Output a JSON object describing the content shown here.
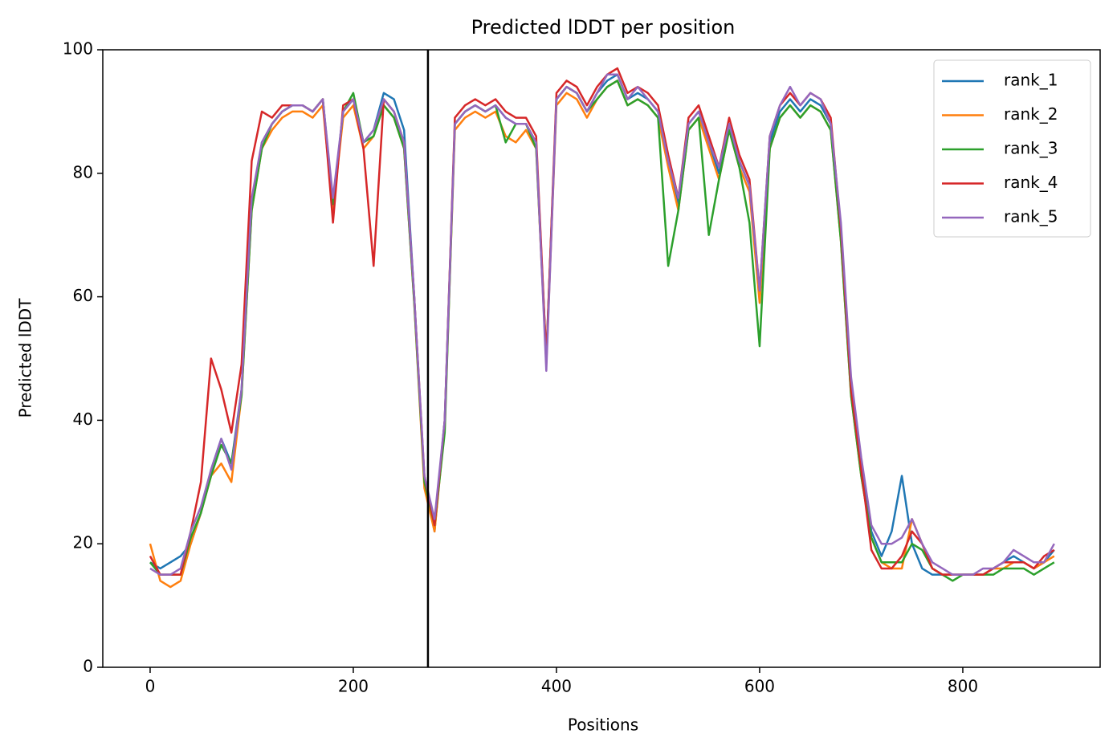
{
  "chart_data": {
    "type": "line",
    "title": "Predicted lDDT per position",
    "xlabel": "Positions",
    "ylabel": "Predicted lDDT",
    "x": [
      0,
      10,
      20,
      30,
      40,
      50,
      60,
      70,
      80,
      90,
      100,
      110,
      120,
      130,
      140,
      150,
      160,
      170,
      180,
      190,
      200,
      210,
      220,
      230,
      240,
      250,
      260,
      270,
      280,
      290,
      300,
      310,
      320,
      330,
      340,
      350,
      360,
      370,
      380,
      390,
      400,
      410,
      420,
      430,
      440,
      450,
      460,
      470,
      480,
      490,
      500,
      510,
      520,
      530,
      540,
      550,
      560,
      570,
      580,
      590,
      600,
      610,
      620,
      630,
      640,
      650,
      660,
      670,
      680,
      690,
      700,
      710,
      720,
      730,
      740,
      750,
      760,
      770,
      780,
      790,
      800,
      810,
      820,
      830,
      840,
      850,
      860,
      870,
      880,
      890
    ],
    "series": [
      {
        "name": "rank_1",
        "color": "#1f77b4",
        "values": [
          17,
          16,
          17,
          18,
          20,
          25,
          32,
          37,
          33,
          45,
          75,
          85,
          88,
          90,
          91,
          91,
          90,
          92,
          75,
          90,
          92,
          85,
          87,
          93,
          92,
          87,
          60,
          30,
          22,
          40,
          88,
          90,
          91,
          90,
          91,
          89,
          88,
          88,
          85,
          50,
          92,
          94,
          93,
          90,
          93,
          95,
          96,
          92,
          93,
          92,
          90,
          82,
          75,
          88,
          90,
          85,
          80,
          88,
          82,
          78,
          60,
          85,
          90,
          92,
          90,
          92,
          91,
          88,
          70,
          45,
          32,
          22,
          18,
          22,
          31,
          20,
          16,
          15,
          15,
          15,
          15,
          15,
          15,
          16,
          17,
          18,
          17,
          16,
          17,
          19
        ]
      },
      {
        "name": "rank_2",
        "color": "#ff7f0e",
        "values": [
          20,
          14,
          13,
          14,
          20,
          25,
          31,
          33,
          30,
          44,
          74,
          84,
          87,
          89,
          90,
          90,
          89,
          91,
          74,
          89,
          91,
          84,
          86,
          91,
          89,
          84,
          59,
          29,
          22,
          39,
          87,
          89,
          90,
          89,
          90,
          86,
          85,
          87,
          84,
          49,
          91,
          93,
          92,
          89,
          92,
          94,
          95,
          91,
          92,
          91,
          89,
          81,
          74,
          87,
          89,
          84,
          79,
          87,
          81,
          77,
          59,
          84,
          89,
          91,
          89,
          91,
          90,
          87,
          69,
          44,
          31,
          21,
          17,
          16,
          16,
          24,
          20,
          16,
          15,
          15,
          15,
          15,
          15,
          16,
          16,
          17,
          17,
          16,
          17,
          18
        ]
      },
      {
        "name": "rank_3",
        "color": "#2ca02c",
        "values": [
          17,
          15,
          15,
          15,
          21,
          25,
          31,
          36,
          33,
          44,
          74,
          84,
          88,
          90,
          91,
          91,
          90,
          92,
          75,
          90,
          93,
          85,
          86,
          91,
          89,
          84,
          59,
          30,
          23,
          38,
          88,
          90,
          91,
          90,
          91,
          85,
          88,
          88,
          84,
          50,
          92,
          94,
          93,
          90,
          92,
          94,
          95,
          91,
          92,
          91,
          89,
          65,
          74,
          87,
          89,
          70,
          79,
          87,
          81,
          72,
          52,
          84,
          89,
          91,
          89,
          91,
          90,
          87,
          69,
          44,
          31,
          21,
          17,
          17,
          17,
          20,
          19,
          16,
          15,
          14,
          15,
          15,
          15,
          15,
          16,
          16,
          16,
          15,
          16,
          17
        ]
      },
      {
        "name": "rank_4",
        "color": "#d62728",
        "values": [
          18,
          15,
          15,
          15,
          22,
          30,
          50,
          45,
          38,
          49,
          82,
          90,
          89,
          91,
          91,
          91,
          90,
          92,
          72,
          91,
          92,
          84,
          65,
          92,
          90,
          85,
          60,
          31,
          23,
          40,
          89,
          91,
          92,
          91,
          92,
          90,
          89,
          89,
          86,
          50,
          93,
          95,
          94,
          91,
          94,
          96,
          97,
          93,
          94,
          93,
          91,
          83,
          76,
          89,
          91,
          86,
          81,
          89,
          83,
          79,
          61,
          86,
          91,
          93,
          91,
          93,
          92,
          89,
          71,
          45,
          32,
          19,
          16,
          16,
          18,
          22,
          20,
          16,
          15,
          15,
          15,
          15,
          15,
          16,
          17,
          17,
          17,
          16,
          18,
          19
        ]
      },
      {
        "name": "rank_5",
        "color": "#9467bd",
        "values": [
          16,
          15,
          15,
          16,
          22,
          26,
          32,
          37,
          32,
          45,
          76,
          85,
          88,
          90,
          91,
          91,
          90,
          92,
          76,
          90,
          92,
          85,
          87,
          92,
          90,
          85,
          60,
          31,
          24,
          40,
          88,
          90,
          91,
          90,
          91,
          89,
          88,
          88,
          85,
          48,
          92,
          94,
          93,
          90,
          93,
          96,
          96,
          92,
          94,
          92,
          90,
          82,
          76,
          88,
          90,
          85,
          81,
          88,
          82,
          78,
          61,
          86,
          91,
          94,
          91,
          93,
          92,
          88,
          72,
          47,
          34,
          23,
          20,
          20,
          21,
          24,
          20,
          17,
          16,
          15,
          15,
          15,
          16,
          16,
          17,
          19,
          18,
          17,
          17,
          20
        ]
      }
    ],
    "vline": 273.5,
    "xlim": [
      -46.6,
      935.2
    ],
    "xticks": [
      0,
      200,
      400,
      600,
      800
    ],
    "ylim": [
      0,
      100
    ],
    "yticks": [
      0,
      20,
      40,
      60,
      80,
      100
    ],
    "legend": "upper right"
  }
}
